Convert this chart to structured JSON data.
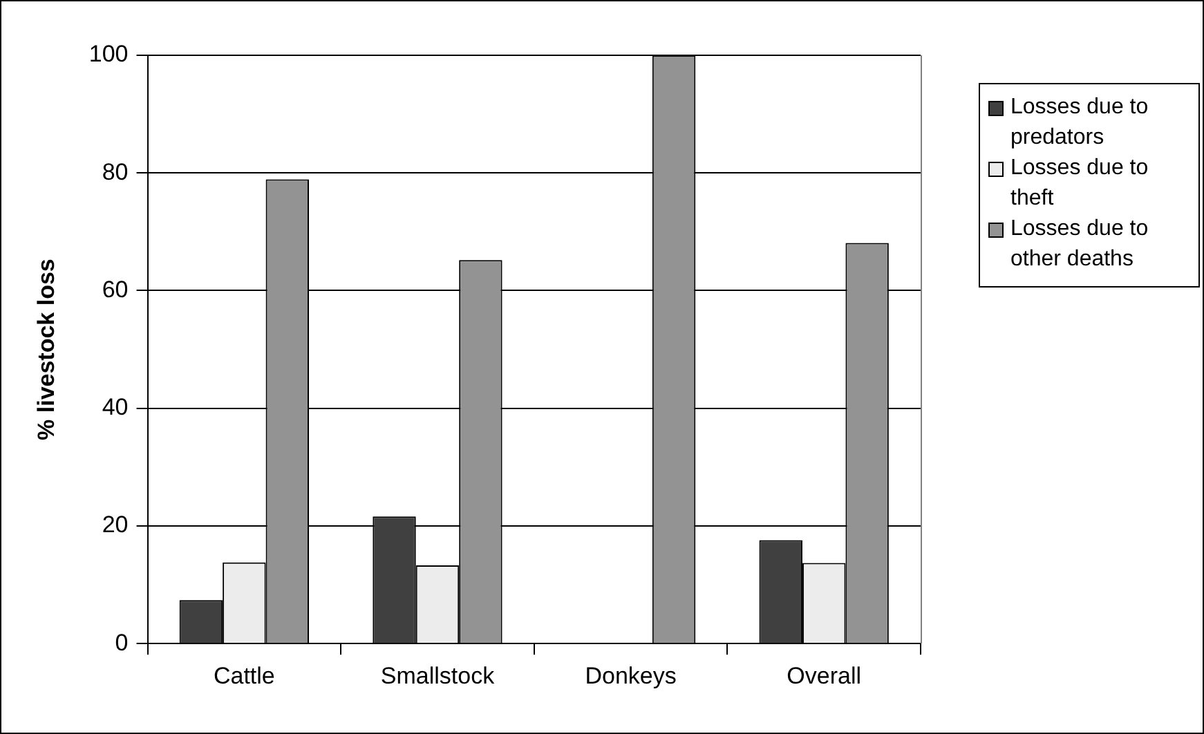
{
  "chart_data": {
    "type": "bar",
    "ylabel": "% livestock loss",
    "categories": [
      "Cattle",
      "Smallstock",
      "Donkeys",
      "Overall"
    ],
    "series": [
      {
        "name": "Losses due to predators",
        "color": "#404040",
        "values": [
          7.4,
          21.6,
          0,
          17.6
        ]
      },
      {
        "name": "Losses due to theft",
        "color": "#ececec",
        "values": [
          13.8,
          13.3,
          0,
          13.7
        ]
      },
      {
        "name": "Losses due to other deaths",
        "color": "#939393",
        "values": [
          78.9,
          65.2,
          100,
          68.1
        ]
      }
    ],
    "ylim": [
      0,
      100
    ],
    "yticks": [
      0,
      20,
      40,
      60,
      80,
      100
    ],
    "grid": "y",
    "legend": "right"
  }
}
